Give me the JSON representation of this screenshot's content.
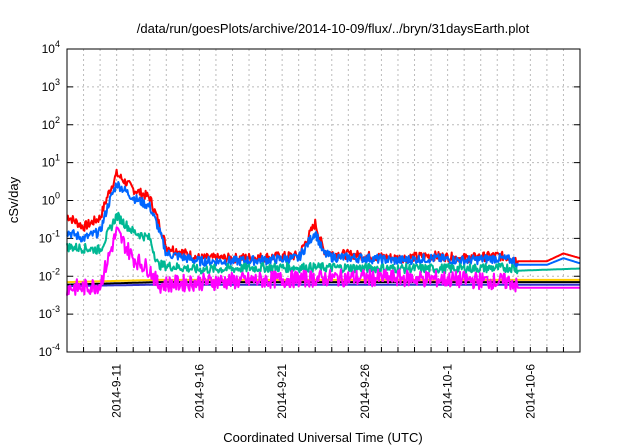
{
  "chart_data": {
    "type": "line",
    "title": "/data/run/goesPlots/archive/2014-10-09/flux/../bryn/31daysEarth.plot",
    "xlabel": "Coordinated Universal Time (UTC)",
    "ylabel": "cSv/day",
    "yscale": "log",
    "ylim": [
      0.0001,
      10000
    ],
    "xlim": [
      "2014-09-08",
      "2014-10-09"
    ],
    "x_ticks": [
      "2014-9-11",
      "2014-9-16",
      "2014-9-21",
      "2014-9-26",
      "2014-10-1",
      "2014-10-6"
    ],
    "y_ticks": [
      {
        "base": "10",
        "exp": "-4"
      },
      {
        "base": "10",
        "exp": "-3"
      },
      {
        "base": "10",
        "exp": "-2"
      },
      {
        "base": "10",
        "exp": "-1"
      },
      {
        "base": "10",
        "exp": "0"
      },
      {
        "base": "10",
        "exp": "1"
      },
      {
        "base": "10",
        "exp": "2"
      },
      {
        "base": "10",
        "exp": "3"
      },
      {
        "base": "10",
        "exp": "4"
      }
    ],
    "grid": true,
    "legend": "none",
    "series": [
      {
        "color": "#ff0000",
        "x": [
          "2014-09-08",
          "2014-09-09",
          "2014-09-10",
          "2014-09-10.5",
          "2014-09-11",
          "2014-09-12",
          "2014-09-13",
          "2014-09-13.5",
          "2014-09-14",
          "2014-09-16",
          "2014-09-18",
          "2014-09-20",
          "2014-09-22",
          "2014-09-23",
          "2014-09-23.5",
          "2014-09-24",
          "2014-09-26",
          "2014-09-28",
          "2014-09-30",
          "2014-10-02",
          "2014-10-04",
          "2014-10-05",
          "2014-10-05.2",
          "2014-10-07",
          "2014-10-08",
          "2014-10-09"
        ],
        "y": [
          0.4,
          0.2,
          0.35,
          1.5,
          5,
          2,
          1.2,
          0.3,
          0.06,
          0.03,
          0.03,
          0.032,
          0.035,
          0.25,
          0.05,
          0.04,
          0.035,
          0.03,
          0.035,
          0.03,
          0.035,
          0.03,
          0.025,
          0.025,
          0.04,
          0.03
        ]
      },
      {
        "color": "#0066ff",
        "x": [
          "2014-09-08",
          "2014-09-09",
          "2014-09-10",
          "2014-09-10.5",
          "2014-09-11",
          "2014-09-12",
          "2014-09-13",
          "2014-09-13.5",
          "2014-09-14",
          "2014-09-16",
          "2014-09-18",
          "2014-09-20",
          "2014-09-22",
          "2014-09-23",
          "2014-09-23.5",
          "2014-09-24",
          "2014-09-26",
          "2014-09-28",
          "2014-09-30",
          "2014-10-02",
          "2014-10-04",
          "2014-10-05",
          "2014-10-05.2",
          "2014-10-07",
          "2014-10-08",
          "2014-10-09"
        ],
        "y": [
          0.15,
          0.1,
          0.15,
          0.8,
          2.8,
          1.2,
          0.7,
          0.2,
          0.04,
          0.025,
          0.025,
          0.027,
          0.03,
          0.15,
          0.04,
          0.032,
          0.03,
          0.026,
          0.03,
          0.026,
          0.03,
          0.026,
          0.02,
          0.02,
          0.03,
          0.022
        ]
      },
      {
        "color": "#00b894",
        "x": [
          "2014-09-08",
          "2014-09-10",
          "2014-09-11",
          "2014-09-12",
          "2014-09-13",
          "2014-09-13.5",
          "2014-09-16",
          "2014-09-20",
          "2014-09-24",
          "2014-09-28",
          "2014-10-02",
          "2014-10-05",
          "2014-10-05.2",
          "2014-10-09"
        ],
        "y": [
          0.06,
          0.05,
          0.4,
          0.15,
          0.1,
          0.02,
          0.015,
          0.017,
          0.017,
          0.016,
          0.016,
          0.017,
          0.014,
          0.016
        ]
      },
      {
        "color": "#ffcc00",
        "x": [
          "2014-09-08",
          "2014-09-13.5",
          "2014-10-05.2",
          "2014-10-09"
        ],
        "y": [
          0.007,
          0.008,
          0.008,
          0.008
        ]
      },
      {
        "color": "#000000",
        "x": [
          "2014-09-08",
          "2014-09-13.5",
          "2014-10-05.2",
          "2014-10-09"
        ],
        "y": [
          0.006,
          0.007,
          0.007,
          0.007
        ]
      },
      {
        "color": "#3333cc",
        "x": [
          "2014-09-08",
          "2014-09-13.5",
          "2014-10-05.2",
          "2014-10-09"
        ],
        "y": [
          0.0055,
          0.006,
          0.006,
          0.006
        ]
      },
      {
        "color": "#ff00ff",
        "x": [
          "2014-09-08",
          "2014-09-09",
          "2014-09-10",
          "2014-09-11",
          "2014-09-12",
          "2014-09-13",
          "2014-09-13.5",
          "2014-09-16",
          "2014-09-20",
          "2014-09-24",
          "2014-09-28",
          "2014-10-02",
          "2014-10-05",
          "2014-10-05.2",
          "2014-10-09"
        ],
        "y": [
          0.005,
          0.005,
          0.006,
          0.15,
          0.03,
          0.015,
          0.006,
          0.007,
          0.008,
          0.009,
          0.009,
          0.008,
          0.007,
          0.005,
          0.005
        ]
      }
    ]
  }
}
